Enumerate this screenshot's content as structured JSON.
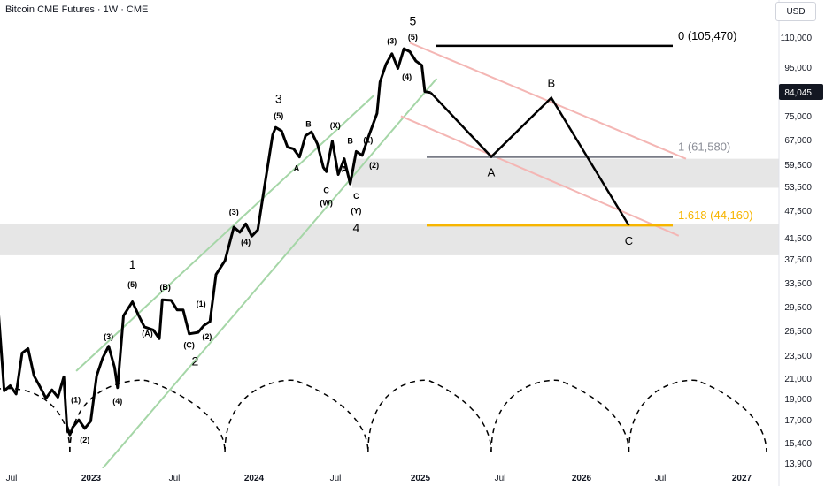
{
  "header": {
    "title": "Bitcoin CME Futures · 1W · CME",
    "currency_button": "USD"
  },
  "chart_data": {
    "type": "line",
    "title": "Bitcoin CME Futures · 1W · CME",
    "yscale": "log",
    "ylim": [
      13300,
      123000
    ],
    "xlim": [
      "2022-06",
      "2027-06"
    ],
    "x_ticks": [
      "Jul",
      "2023",
      "Jul",
      "2024",
      "Jul",
      "2025",
      "Jul",
      "2026",
      "Jul",
      "2027"
    ],
    "y_ticks": [
      110000,
      95000,
      84045,
      75000,
      67000,
      59500,
      53500,
      47500,
      41500,
      37500,
      33500,
      29500,
      26500,
      23500,
      21000,
      19000,
      17000,
      15400,
      13900
    ],
    "y_tick_labels": [
      "110,000",
      "95,000",
      "84,045",
      "75,000",
      "67,000",
      "59,500",
      "53,500",
      "47,500",
      "41,500",
      "37,500",
      "33,500",
      "29,500",
      "26,500",
      "23,500",
      "21,000",
      "19,000",
      "17,000",
      "15,400",
      "13,900"
    ],
    "current_price": {
      "value": 84045,
      "label": "84,045"
    },
    "series": [
      {
        "values": [
          [
            "2022-06-01",
            29500
          ],
          [
            "2022-06-15",
            19800
          ],
          [
            "2022-06-29",
            20300
          ],
          [
            "2022-07-13",
            19500
          ],
          [
            "2022-07-27",
            23800
          ],
          [
            "2022-08-10",
            24300
          ],
          [
            "2022-08-24",
            21300
          ],
          [
            "2022-09-07",
            20200
          ],
          [
            "2022-09-21",
            19100
          ],
          [
            "2022-10-05",
            19900
          ],
          [
            "2022-10-19",
            19200
          ],
          [
            "2022-11-02",
            21200
          ],
          [
            "2022-11-09",
            16700
          ],
          [
            "2022-11-16",
            16000
          ],
          [
            "2022-11-23",
            16600
          ],
          [
            "2022-12-07",
            17200
          ],
          [
            "2022-12-21",
            16500
          ],
          [
            "2023-01-04",
            17100
          ],
          [
            "2023-01-18",
            21300
          ],
          [
            "2023-02-01",
            23200
          ],
          [
            "2023-02-15",
            24600
          ],
          [
            "2023-03-01",
            22200
          ],
          [
            "2023-03-08",
            20100
          ],
          [
            "2023-03-22",
            28500
          ],
          [
            "2023-04-12",
            30500
          ],
          [
            "2023-04-26",
            28600
          ],
          [
            "2023-05-10",
            27000
          ],
          [
            "2023-05-31",
            26600
          ],
          [
            "2023-06-14",
            25500
          ],
          [
            "2023-06-21",
            30800
          ],
          [
            "2023-07-12",
            30700
          ],
          [
            "2023-07-26",
            29300
          ],
          [
            "2023-08-09",
            29300
          ],
          [
            "2023-08-23",
            26100
          ],
          [
            "2023-09-13",
            26300
          ],
          [
            "2023-09-27",
            27200
          ],
          [
            "2023-10-11",
            27700
          ],
          [
            "2023-10-25",
            34800
          ],
          [
            "2023-11-15",
            37200
          ],
          [
            "2023-12-06",
            43800
          ],
          [
            "2023-12-20",
            42700
          ],
          [
            "2024-01-03",
            44500
          ],
          [
            "2024-01-17",
            41900
          ],
          [
            "2024-01-31",
            43200
          ],
          [
            "2024-02-14",
            52000
          ],
          [
            "2024-03-06",
            68500
          ],
          [
            "2024-03-13",
            71000
          ],
          [
            "2024-03-27",
            69800
          ],
          [
            "2024-04-10",
            64500
          ],
          [
            "2024-04-24",
            64000
          ],
          [
            "2024-05-08",
            61500
          ],
          [
            "2024-05-22",
            68200
          ],
          [
            "2024-06-05",
            69500
          ],
          [
            "2024-06-19",
            65500
          ],
          [
            "2024-07-03",
            58500
          ],
          [
            "2024-07-10",
            57300
          ],
          [
            "2024-07-24",
            66500
          ],
          [
            "2024-08-07",
            56500
          ],
          [
            "2024-08-21",
            61000
          ],
          [
            "2024-09-04",
            54000
          ],
          [
            "2024-09-18",
            63200
          ],
          [
            "2024-10-02",
            62000
          ],
          [
            "2024-10-16",
            67500
          ],
          [
            "2024-11-06",
            76000
          ],
          [
            "2024-11-13",
            88500
          ],
          [
            "2024-11-27",
            96500
          ],
          [
            "2024-12-11",
            101500
          ],
          [
            "2024-12-25",
            94500
          ],
          [
            "2025-01-08",
            104000
          ],
          [
            "2025-01-22",
            102500
          ],
          [
            "2025-02-05",
            98000
          ],
          [
            "2025-02-19",
            96000
          ],
          [
            "2025-02-26",
            84500
          ],
          [
            "2025-03-12",
            84045
          ]
        ]
      }
    ],
    "projection": [
      {
        "x": "2025-03-12",
        "y": 84045,
        "label": ""
      },
      {
        "x": "2025-08-01",
        "y": 61580,
        "label": "A"
      },
      {
        "x": "2025-12-20",
        "y": 82000,
        "label": "B"
      },
      {
        "x": "2026-06-20",
        "y": 44160,
        "label": "C"
      }
    ],
    "fib_levels": [
      {
        "label": "0 (105,470)",
        "value": 105470,
        "color": "#000000"
      },
      {
        "label": "1 (61,580)",
        "value": 61580,
        "color": "#787b86"
      },
      {
        "label": "1.618 (44,160)",
        "value": 44160,
        "color": "#f7b500"
      }
    ],
    "zones": [
      {
        "from": 53000,
        "to": 61000
      },
      {
        "from": 38200,
        "to": 44500
      }
    ],
    "wave_labels": [
      {
        "text": "(1)",
        "x": "2022-11-30",
        "y": 18700
      },
      {
        "text": "(2)",
        "x": "2022-12-21",
        "y": 15400
      },
      {
        "text": "(3)",
        "x": "2023-02-15",
        "y": 25400
      },
      {
        "text": "(4)",
        "x": "2023-03-08",
        "y": 18600
      },
      {
        "text": "(5)",
        "x": "2023-04-12",
        "y": 32700
      },
      {
        "text": "1",
        "x": "2023-04-12",
        "y": 35800
      },
      {
        "text": "(A)",
        "x": "2023-05-17",
        "y": 25800
      },
      {
        "text": "(B)",
        "x": "2023-06-28",
        "y": 32300
      },
      {
        "text": "(C)",
        "x": "2023-08-23",
        "y": 24400
      },
      {
        "text": "2",
        "x": "2023-09-06",
        "y": 22400
      },
      {
        "text": "(1)",
        "x": "2023-09-20",
        "y": 29800
      },
      {
        "text": "(2)",
        "x": "2023-10-04",
        "y": 25400
      },
      {
        "text": "(3)",
        "x": "2023-12-06",
        "y": 46500
      },
      {
        "text": "(4)",
        "x": "2024-01-03",
        "y": 40200
      },
      {
        "text": "(5)",
        "x": "2024-03-20",
        "y": 74200
      },
      {
        "text": "3",
        "x": "2024-03-20",
        "y": 80000
      },
      {
        "text": "A",
        "x": "2024-05-01",
        "y": 57500
      },
      {
        "text": "B",
        "x": "2024-05-29",
        "y": 71200
      },
      {
        "text": "C",
        "x": "2024-07-10",
        "y": 51600
      },
      {
        "text": "(W)",
        "x": "2024-07-10",
        "y": 48600
      },
      {
        "text": "(X)",
        "x": "2024-07-31",
        "y": 70800
      },
      {
        "text": "A",
        "x": "2024-08-21",
        "y": 57200
      },
      {
        "text": "B",
        "x": "2024-09-04",
        "y": 65600
      },
      {
        "text": "C",
        "x": "2024-09-18",
        "y": 50200
      },
      {
        "text": "(Y)",
        "x": "2024-09-18",
        "y": 46800
      },
      {
        "text": "4",
        "x": "2024-09-18",
        "y": 42800
      },
      {
        "text": "(1)",
        "x": "2024-10-16",
        "y": 65900
      },
      {
        "text": "(2)",
        "x": "2024-10-30",
        "y": 58400
      },
      {
        "text": "(3)",
        "x": "2024-12-11",
        "y": 106600
      },
      {
        "text": "(4)",
        "x": "2025-01-15",
        "y": 89500
      },
      {
        "text": "(5)",
        "x": "2025-01-29",
        "y": 108500
      },
      {
        "text": "5",
        "x": "2025-01-29",
        "y": 116500
      }
    ],
    "channels": [
      {
        "color": "#a5d6a7",
        "points": [
          [
            "2022-12-01",
            21800
          ],
          [
            "2024-10-30",
            83000
          ]
        ]
      },
      {
        "color": "#a5d6a7",
        "points": [
          [
            "2023-02-01",
            13600
          ],
          [
            "2025-03-26",
            90000
          ]
        ]
      },
      {
        "color": "#f4b6b4",
        "points": [
          [
            "2025-01-22",
            107000
          ],
          [
            "2026-11-01",
            61000
          ]
        ]
      },
      {
        "color": "#f4b6b4",
        "points": [
          [
            "2025-01-01",
            75000
          ],
          [
            "2026-10-15",
            42000
          ]
        ]
      }
    ],
    "cycles": [
      "2022-11-16",
      "2023-11-15",
      "2024-10-16",
      "2025-08-01",
      "2026-06-20"
    ]
  }
}
